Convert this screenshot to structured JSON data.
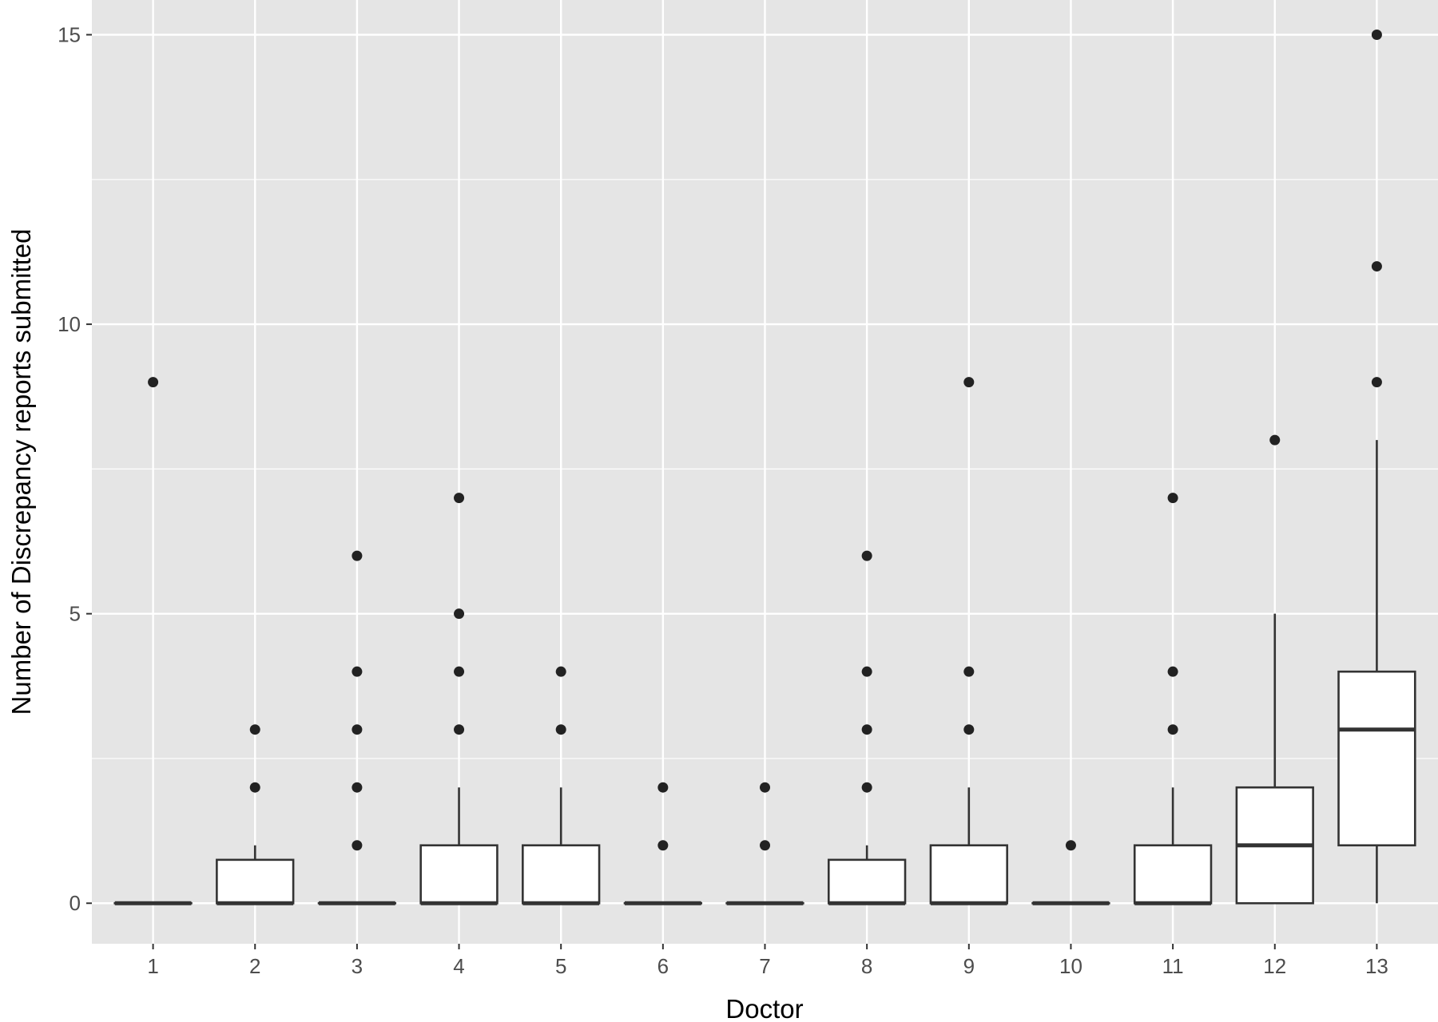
{
  "chart_data": {
    "type": "boxplot",
    "title": "",
    "xlabel": "Doctor",
    "ylabel": "Number of Discrepancy reports submitted",
    "ylim": [
      -0.7,
      15.6
    ],
    "y_ticks": [
      0,
      5,
      10,
      15
    ],
    "y_tick_labels": [
      "0",
      "5",
      "10",
      "15"
    ],
    "grid": true,
    "colors": {
      "panel": "#e5e5e5",
      "grid": "#ffffff",
      "box_fill": "#ffffff",
      "stroke": "#333333",
      "point": "#222222"
    },
    "categories": [
      "1",
      "2",
      "3",
      "4",
      "5",
      "6",
      "7",
      "8",
      "9",
      "10",
      "11",
      "12",
      "13"
    ],
    "boxes": [
      {
        "category": "1",
        "lower_whisker": 0,
        "q1": 0,
        "median": 0,
        "q3": 0,
        "upper_whisker": 0,
        "outliers": [
          9
        ]
      },
      {
        "category": "2",
        "lower_whisker": 0,
        "q1": 0,
        "median": 0,
        "q3": 0.75,
        "upper_whisker": 1,
        "outliers": [
          2,
          3
        ]
      },
      {
        "category": "3",
        "lower_whisker": 0,
        "q1": 0,
        "median": 0,
        "q3": 0,
        "upper_whisker": 0,
        "outliers": [
          1,
          2,
          3,
          4,
          6
        ]
      },
      {
        "category": "4",
        "lower_whisker": 0,
        "q1": 0,
        "median": 0,
        "q3": 1,
        "upper_whisker": 2,
        "outliers": [
          3,
          4,
          5,
          7
        ]
      },
      {
        "category": "5",
        "lower_whisker": 0,
        "q1": 0,
        "median": 0,
        "q3": 1,
        "upper_whisker": 2,
        "outliers": [
          3,
          4
        ]
      },
      {
        "category": "6",
        "lower_whisker": 0,
        "q1": 0,
        "median": 0,
        "q3": 0,
        "upper_whisker": 0,
        "outliers": [
          1,
          2
        ]
      },
      {
        "category": "7",
        "lower_whisker": 0,
        "q1": 0,
        "median": 0,
        "q3": 0,
        "upper_whisker": 0,
        "outliers": [
          1,
          2
        ]
      },
      {
        "category": "8",
        "lower_whisker": 0,
        "q1": 0,
        "median": 0,
        "q3": 0.75,
        "upper_whisker": 1,
        "outliers": [
          2,
          3,
          4,
          6
        ]
      },
      {
        "category": "9",
        "lower_whisker": 0,
        "q1": 0,
        "median": 0,
        "q3": 1,
        "upper_whisker": 2,
        "outliers": [
          3,
          4,
          9
        ]
      },
      {
        "category": "10",
        "lower_whisker": 0,
        "q1": 0,
        "median": 0,
        "q3": 0,
        "upper_whisker": 0,
        "outliers": [
          1
        ]
      },
      {
        "category": "11",
        "lower_whisker": 0,
        "q1": 0,
        "median": 0,
        "q3": 1,
        "upper_whisker": 2,
        "outliers": [
          3,
          4,
          7
        ]
      },
      {
        "category": "12",
        "lower_whisker": 0,
        "q1": 0,
        "median": 1,
        "q3": 2,
        "upper_whisker": 5,
        "outliers": [
          8
        ]
      },
      {
        "category": "13",
        "lower_whisker": 0,
        "q1": 1,
        "median": 3,
        "q3": 4,
        "upper_whisker": 8,
        "outliers": [
          9,
          11,
          15
        ]
      }
    ]
  }
}
